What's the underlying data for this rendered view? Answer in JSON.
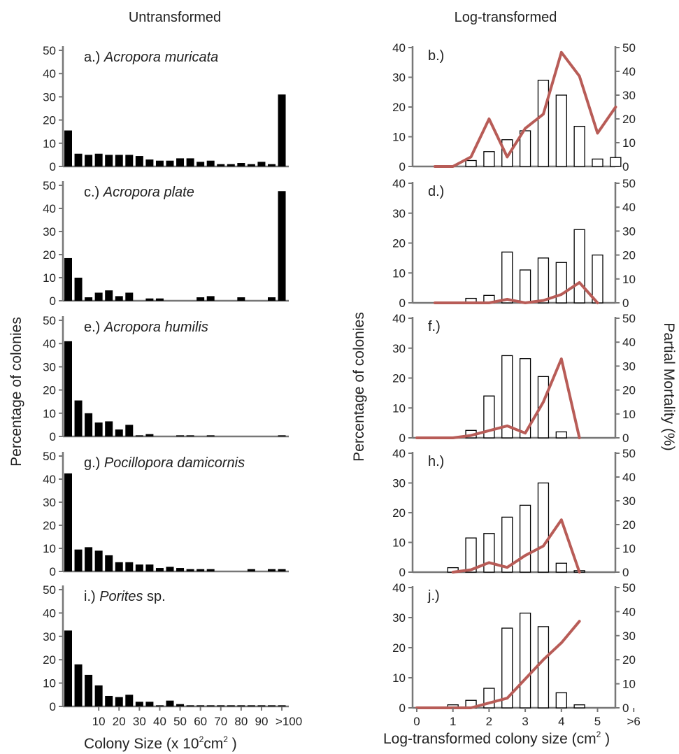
{
  "figure": {
    "left_heading": "Untransformed",
    "right_heading": "Log-transformed",
    "left_ylabel": "Percentage of colonies",
    "right_ylabel": "Percentage of colonies",
    "right_y2label": "Partial Mortality (%)",
    "left_xlabel": "Colony Size (x 10",
    "left_xlabel_sup": "2",
    "left_xlabel_unit": "cm",
    "left_xlabel_sup2": "2",
    "left_xlabel_end": " )",
    "right_xlabel": "Log-transformed colony size (cm",
    "right_xlabel_sup": "2",
    "right_xlabel_end": " )",
    "colors": {
      "bar_dark": "#000000",
      "bar_open": "#ffffff",
      "mortality_line": "#b85c57",
      "axis": "#777777"
    }
  },
  "chart_data": [
    {
      "type": "bar",
      "panel": "a.)",
      "title_species": "Acropora muricata",
      "title_suffix": "",
      "y_ticks": [
        "50",
        "40",
        "30",
        "20",
        "10",
        "0"
      ],
      "ylim": [
        0,
        50
      ],
      "values": [
        15.5,
        5.5,
        5,
        5.5,
        5,
        5,
        5,
        4.5,
        3,
        2.5,
        2.5,
        3.5,
        3.5,
        2,
        2.5,
        1,
        1,
        1.5,
        1,
        2,
        1,
        31
      ]
    },
    {
      "type": "bar",
      "panel": "c.)",
      "title_species": "Acropora plate",
      "title_suffix": "",
      "y_ticks": [
        "50",
        "40",
        "30",
        "20",
        "10",
        "0"
      ],
      "ylim": [
        0,
        50
      ],
      "values": [
        18.5,
        10,
        1.5,
        3.5,
        4.5,
        2,
        3.5,
        0,
        1,
        1,
        0,
        0,
        0,
        1.5,
        2,
        0,
        0,
        1.5,
        0,
        0,
        1.5,
        47.5
      ]
    },
    {
      "type": "bar",
      "panel": "e.)",
      "title_species": "Acropora humilis",
      "title_suffix": "",
      "y_ticks": [
        "50",
        "40",
        "30",
        "20",
        "10",
        "0"
      ],
      "ylim": [
        0,
        50
      ],
      "values": [
        41,
        15.5,
        10,
        6,
        6.5,
        3,
        5,
        0.5,
        1,
        0,
        0,
        0.5,
        0.5,
        0,
        0.5,
        0,
        0,
        0,
        0,
        0,
        0,
        0.5
      ]
    },
    {
      "type": "bar",
      "panel": "g.)",
      "title_species": "Pocillopora damicornis",
      "title_suffix": "",
      "y_ticks": [
        "50",
        "40",
        "30",
        "20",
        "10",
        "0"
      ],
      "ylim": [
        0,
        50
      ],
      "values": [
        42.5,
        9.5,
        10.5,
        9,
        7,
        4,
        4,
        3,
        3,
        1.5,
        2,
        1.5,
        1,
        1,
        1,
        0,
        0,
        0,
        1,
        0,
        1,
        1
      ]
    },
    {
      "type": "bar",
      "panel": "i.)",
      "title_species": "Porites",
      "title_suffix": " sp.",
      "y_ticks": [
        "50",
        "40",
        "30",
        "20",
        "10",
        "0"
      ],
      "ylim": [
        0,
        50
      ],
      "x_tick_labels": [
        "10",
        "20",
        "30",
        "40",
        "50",
        "60",
        "70",
        "80",
        "90",
        ">100"
      ],
      "values": [
        32.5,
        18,
        13.5,
        9,
        4.5,
        4,
        5,
        2,
        2,
        0.5,
        2.5,
        1,
        0.5,
        0.5,
        0.5,
        0.5,
        0.5,
        0.5,
        0.5,
        0.5,
        0.5,
        0.5
      ]
    },
    {
      "type": "bar",
      "panel": "b.)",
      "y_ticks": [
        "40",
        "30",
        "20",
        "10",
        "0"
      ],
      "y2_ticks": [
        "50",
        "40",
        "30",
        "20",
        "10",
        "0"
      ],
      "ylim": [
        0,
        40
      ],
      "y2lim": [
        0,
        50
      ],
      "bars_x": [
        1.5,
        2,
        2.5,
        3,
        3.5,
        4,
        4.5,
        5,
        5.5
      ],
      "values": [
        2,
        5,
        9,
        12,
        29,
        24,
        13.5,
        2.5,
        3
      ],
      "series": [
        {
          "x": [
            0.5,
            1,
            1.5,
            2,
            2.5,
            3,
            3.5,
            4,
            4.5,
            5,
            5.5
          ],
          "values": [
            0,
            0,
            4,
            20,
            4,
            16,
            22,
            48,
            38,
            14,
            25
          ]
        }
      ]
    },
    {
      "type": "bar",
      "panel": "d.)",
      "y_ticks": [
        "40",
        "30",
        "20",
        "10",
        "0"
      ],
      "y2_ticks": [
        "50",
        "40",
        "30",
        "20",
        "10",
        "0"
      ],
      "ylim": [
        0,
        40
      ],
      "y2lim": [
        0,
        50
      ],
      "bars_x": [
        1.5,
        2,
        2.5,
        3,
        3.5,
        4,
        4.5,
        5
      ],
      "values": [
        1.5,
        2.5,
        17,
        11,
        15,
        13.5,
        24.5,
        16
      ],
      "series": [
        {
          "x": [
            0.5,
            1,
            1.5,
            2,
            2.5,
            3,
            3.5,
            4,
            4.5,
            5
          ],
          "values": [
            0,
            0,
            0,
            0,
            1.5,
            0,
            1,
            3.5,
            8.5,
            0
          ]
        }
      ]
    },
    {
      "type": "bar",
      "panel": "f.)",
      "y_ticks": [
        "40",
        "30",
        "20",
        "10",
        "0"
      ],
      "y2_ticks": [
        "50",
        "40",
        "30",
        "20",
        "10",
        "0"
      ],
      "ylim": [
        0,
        40
      ],
      "y2lim": [
        0,
        50
      ],
      "bars_x": [
        1.5,
        2,
        2.5,
        3,
        3.5,
        4
      ],
      "values": [
        2.5,
        14,
        27.5,
        26.5,
        20.5,
        2
      ],
      "series": [
        {
          "x": [
            0,
            0.5,
            1,
            1.5,
            2,
            2.5,
            3,
            3.5,
            4,
            4.5
          ],
          "values": [
            0,
            0,
            0,
            1,
            3,
            5,
            2,
            15,
            33,
            0
          ]
        }
      ]
    },
    {
      "type": "bar",
      "panel": "h.)",
      "y_ticks": [
        "40",
        "30",
        "20",
        "10",
        "0"
      ],
      "y2_ticks": [
        "50",
        "40",
        "30",
        "20",
        "10",
        "0"
      ],
      "ylim": [
        0,
        40
      ],
      "y2lim": [
        0,
        50
      ],
      "bars_x": [
        1,
        1.5,
        2,
        2.5,
        3,
        3.5,
        4,
        4.5
      ],
      "values": [
        1.5,
        11.5,
        13,
        18.5,
        22.5,
        30,
        3,
        0.5
      ],
      "series": [
        {
          "x": [
            1,
            1.5,
            2,
            2.5,
            3,
            3.5,
            4,
            4.5
          ],
          "values": [
            0,
            1,
            4,
            2,
            7,
            11,
            22,
            0
          ]
        }
      ]
    },
    {
      "type": "bar",
      "panel": "j.)",
      "y_ticks": [
        "40",
        "30",
        "20",
        "10",
        "0"
      ],
      "y2_ticks": [
        "50",
        "40",
        "30",
        "20",
        "10",
        "0"
      ],
      "ylim": [
        0,
        40
      ],
      "y2lim": [
        0,
        50
      ],
      "x_tick_labels": [
        "0",
        "1",
        "2",
        "3",
        "4",
        "5",
        ">6"
      ],
      "bars_x": [
        1,
        1.5,
        2,
        2.5,
        3,
        3.5,
        4,
        4.5
      ],
      "values": [
        1,
        2.5,
        6.5,
        26.5,
        31.5,
        27,
        5,
        1
      ],
      "series": [
        {
          "x": [
            0,
            0.5,
            1,
            1.5,
            2,
            2.5,
            3,
            3.5,
            4,
            4.5
          ],
          "values": [
            0,
            0,
            0,
            0,
            2,
            4,
            12,
            20,
            27,
            36
          ]
        }
      ]
    }
  ]
}
